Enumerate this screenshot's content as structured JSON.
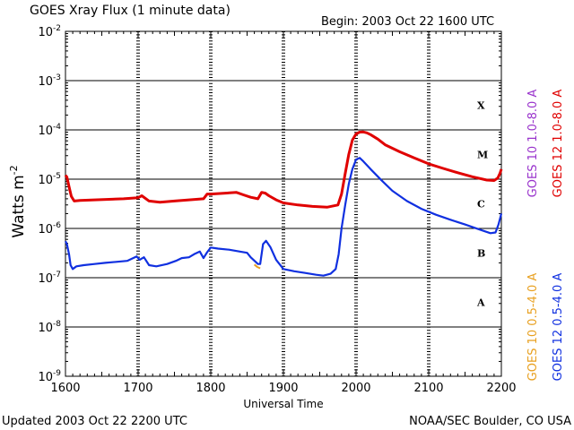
{
  "header": {
    "title": "GOES Xray Flux (1 minute data)",
    "begin": "Begin: 2003 Oct 22  1600 UTC"
  },
  "footer": {
    "updated": "Updated 2003 Oct 22 2200 UTC",
    "credit": "NOAA/SEC Boulder, CO USA"
  },
  "chart_data": {
    "type": "line",
    "title": "GOES Xray Flux (1 minute data)",
    "xlabel": "Universal Time",
    "ylabel": "Watts m",
    "ylabel_superscript": "-2",
    "log_scale_y": true,
    "xlim": [
      1600,
      2200
    ],
    "ylim_exponent": [
      -9,
      -2
    ],
    "x_ticks": [
      1600,
      1700,
      1800,
      1900,
      2000,
      2100,
      2200
    ],
    "y_ticks": [
      {
        "base": "10",
        "exp": "-2"
      },
      {
        "base": "10",
        "exp": "-3"
      },
      {
        "base": "10",
        "exp": "-4"
      },
      {
        "base": "10",
        "exp": "-5"
      },
      {
        "base": "10",
        "exp": "-6"
      },
      {
        "base": "10",
        "exp": "-7"
      },
      {
        "base": "10",
        "exp": "-8"
      },
      {
        "base": "10",
        "exp": "-9"
      }
    ],
    "flare_classes": [
      {
        "label": "X",
        "flux_exp": -3.5
      },
      {
        "label": "M",
        "flux_exp": -4.5
      },
      {
        "label": "C",
        "flux_exp": -5.5
      },
      {
        "label": "B",
        "flux_exp": -6.5
      },
      {
        "label": "A",
        "flux_exp": -7.5
      }
    ],
    "legend_right": [
      {
        "text": "GOES 10 1.0-8.0 A",
        "color": "#9933cc"
      },
      {
        "text": "GOES 12 1.0-8.0 A",
        "color": "#e00000"
      },
      {
        "text": "GOES 10 0.5-4.0 A",
        "color": "#e8a020"
      },
      {
        "text": "GOES 12 0.5-4.0 A",
        "color": "#1030e0"
      }
    ],
    "series": [
      {
        "name": "GOES 12 1.0-8.0 A",
        "color": "#e00000",
        "x": [
          1600,
          1602,
          1605,
          1608,
          1612,
          1620,
          1640,
          1660,
          1680,
          1700,
          1705,
          1715,
          1730,
          1750,
          1770,
          1790,
          1795,
          1800,
          1820,
          1835,
          1845,
          1855,
          1865,
          1870,
          1875,
          1880,
          1890,
          1900,
          1920,
          1940,
          1960,
          1975,
          1980,
          1985,
          1990,
          1995,
          2000,
          2005,
          2010,
          2015,
          2020,
          2030,
          2040,
          2060,
          2080,
          2100,
          2120,
          2140,
          2160,
          2180,
          2190,
          2195,
          2198,
          2200
        ],
        "y": [
          1.2e-05,
          1.1e-05,
          7e-06,
          4.5e-06,
          3.6e-06,
          3.7e-06,
          3.8e-06,
          3.9e-06,
          4e-06,
          4.2e-06,
          4.6e-06,
          3.6e-06,
          3.4e-06,
          3.6e-06,
          3.8e-06,
          4e-06,
          5e-06,
          5e-06,
          5.2e-06,
          5.4e-06,
          4.8e-06,
          4.3e-06,
          4e-06,
          5.4e-06,
          5.2e-06,
          4.6e-06,
          3.8e-06,
          3.3e-06,
          3e-06,
          2.8e-06,
          2.7e-06,
          3e-06,
          5e-06,
          1.3e-05,
          3.2e-05,
          6.2e-05,
          8.3e-05,
          9e-05,
          9.1e-05,
          8.7e-05,
          8e-05,
          6.5e-05,
          5e-05,
          3.6e-05,
          2.7e-05,
          2.05e-05,
          1.65e-05,
          1.35e-05,
          1.12e-05,
          9.6e-06,
          9.4e-06,
          1.05e-05,
          1.3e-05,
          1.6e-05
        ]
      },
      {
        "name": "GOES 12 0.5-4.0 A",
        "color": "#1030e0",
        "x": [
          1600,
          1602,
          1605,
          1607,
          1610,
          1615,
          1625,
          1640,
          1655,
          1670,
          1685,
          1698,
          1702,
          1708,
          1715,
          1725,
          1740,
          1752,
          1760,
          1770,
          1777,
          1785,
          1790,
          1795,
          1800,
          1810,
          1825,
          1840,
          1850,
          1855,
          1865,
          1868,
          1872,
          1876,
          1882,
          1890,
          1900,
          1915,
          1930,
          1945,
          1955,
          1965,
          1972,
          1976,
          1980,
          1985,
          1990,
          1995,
          2000,
          2005,
          2010,
          2020,
          2035,
          2050,
          2070,
          2090,
          2110,
          2130,
          2150,
          2170,
          2185,
          2192,
          2196,
          2200
        ],
        "y": [
          5.5e-07,
          4.8e-07,
          3e-07,
          1.8e-07,
          1.5e-07,
          1.7e-07,
          1.8e-07,
          1.9e-07,
          2e-07,
          2.1e-07,
          2.2e-07,
          2.7e-07,
          2.3e-07,
          2.6e-07,
          1.8e-07,
          1.7e-07,
          1.9e-07,
          2.2e-07,
          2.5e-07,
          2.6e-07,
          3e-07,
          3.4e-07,
          2.5e-07,
          3.3e-07,
          4.1e-07,
          3.9e-07,
          3.7e-07,
          3.4e-07,
          3.2e-07,
          2.6e-07,
          1.9e-07,
          1.9e-07,
          4.8e-07,
          5.6e-07,
          4.2e-07,
          2.3e-07,
          1.5e-07,
          1.35e-07,
          1.25e-07,
          1.15e-07,
          1.1e-07,
          1.2e-07,
          1.5e-07,
          3e-07,
          1e-06,
          3e-06,
          8e-06,
          1.6e-05,
          2.5e-05,
          2.7e-05,
          2.3e-05,
          1.6e-05,
          9.5e-06,
          5.8e-06,
          3.6e-06,
          2.5e-06,
          1.9e-06,
          1.5e-06,
          1.2e-06,
          9.5e-07,
          8e-07,
          8.3e-07,
          1.2e-06,
          2e-06
        ]
      },
      {
        "name": "GOES 10 0.5-4.0 A",
        "color": "#e8a020",
        "x": [
          1860,
          1864,
          1868
        ],
        "y": [
          1.85e-07,
          1.65e-07,
          1.55e-07
        ]
      }
    ]
  }
}
